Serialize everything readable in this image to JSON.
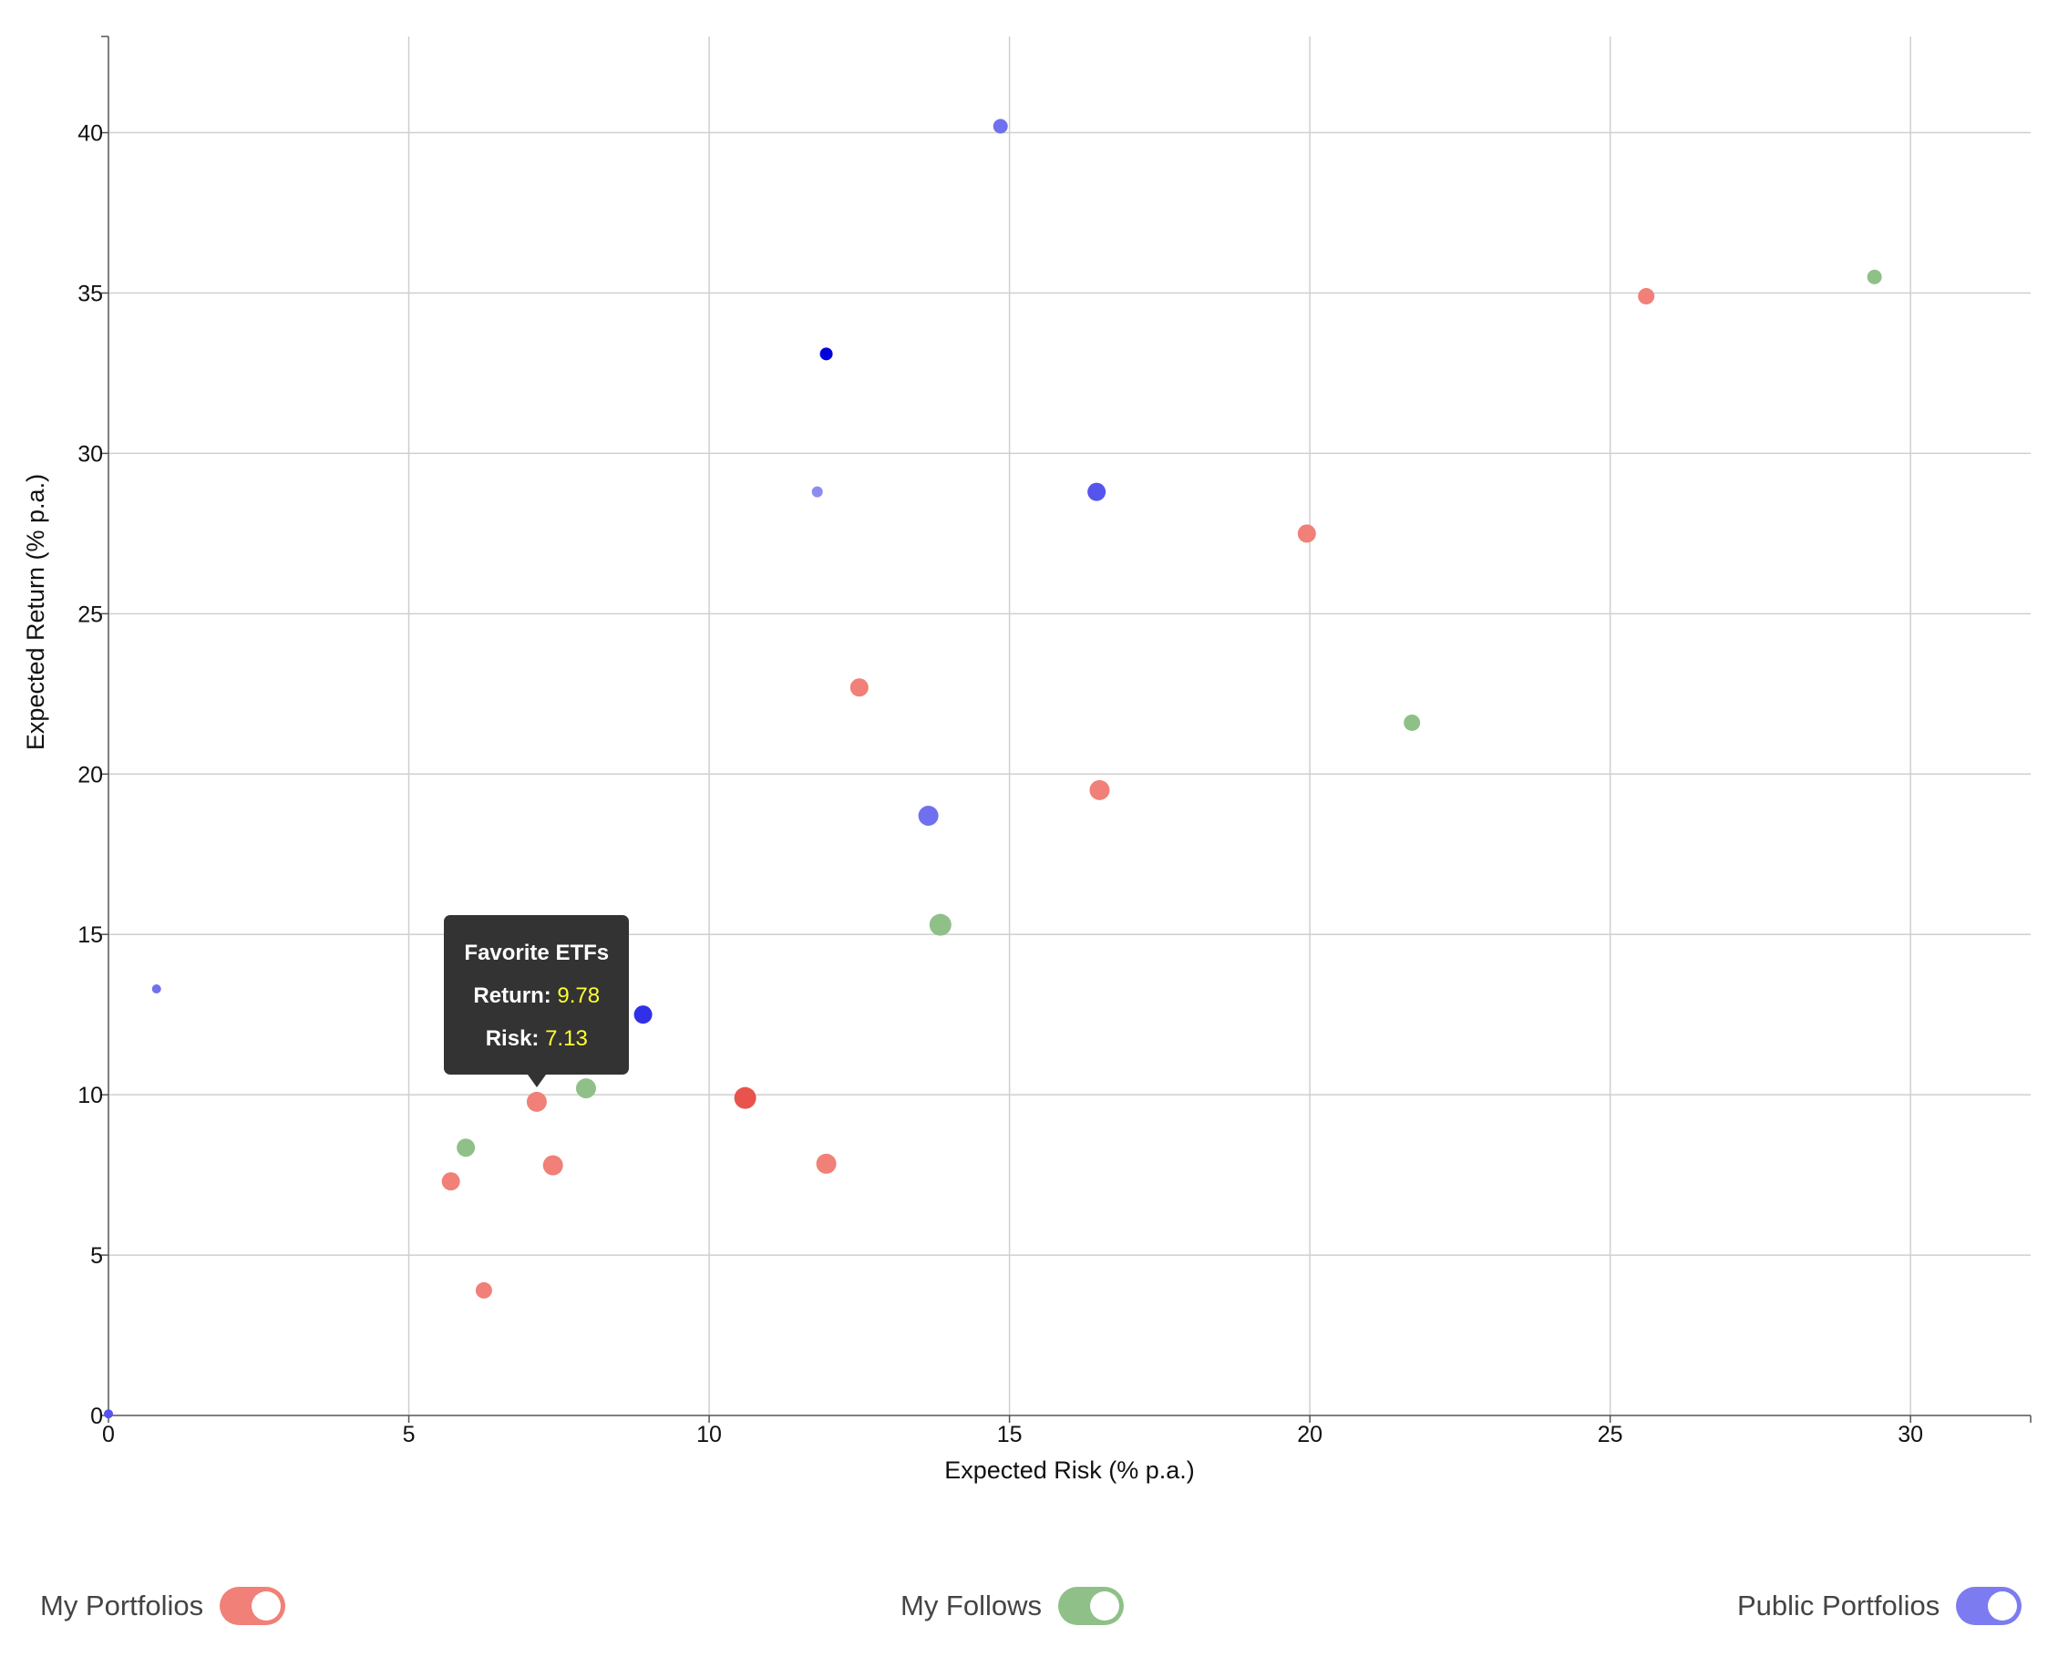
{
  "chart_data": {
    "type": "scatter",
    "xlabel": "Expected Risk (% p.a.)",
    "ylabel": "Expected Return (% p.a.)",
    "xlim": [
      0,
      32
    ],
    "ylim": [
      0,
      43
    ],
    "xticks": [
      0,
      5,
      10,
      15,
      20,
      25,
      30
    ],
    "yticks": [
      0,
      5,
      10,
      15,
      20,
      25,
      30,
      35,
      40
    ],
    "grid": true,
    "legend_position": "bottom",
    "series": [
      {
        "key": "my-portfolios",
        "color": "#f08078",
        "points": [
          {
            "x": 25.6,
            "y": 34.9,
            "r": 9
          },
          {
            "x": 19.95,
            "y": 27.5,
            "r": 10
          },
          {
            "x": 12.5,
            "y": 22.7,
            "r": 10
          },
          {
            "x": 16.5,
            "y": 19.5,
            "r": 11
          },
          {
            "x": 10.6,
            "y": 9.9,
            "r": 12,
            "color": "#e8544c"
          },
          {
            "x": 7.13,
            "y": 9.78,
            "r": 11
          },
          {
            "x": 7.4,
            "y": 7.8,
            "r": 11
          },
          {
            "x": 11.95,
            "y": 7.85,
            "r": 11
          },
          {
            "x": 5.7,
            "y": 7.3,
            "r": 10
          },
          {
            "x": 6.25,
            "y": 3.9,
            "r": 9
          }
        ]
      },
      {
        "key": "my-follows",
        "color": "#8fc088",
        "points": [
          {
            "x": 29.4,
            "y": 35.5,
            "r": 8
          },
          {
            "x": 21.7,
            "y": 21.6,
            "r": 9
          },
          {
            "x": 13.85,
            "y": 15.3,
            "r": 12
          },
          {
            "x": 7.95,
            "y": 10.2,
            "r": 11
          },
          {
            "x": 5.95,
            "y": 8.35,
            "r": 10
          }
        ]
      },
      {
        "key": "public-portfolios",
        "color": "#7070ee",
        "points": [
          {
            "x": 14.85,
            "y": 40.2,
            "r": 8
          },
          {
            "x": 11.95,
            "y": 33.1,
            "r": 7,
            "color": "#0000dd"
          },
          {
            "x": 11.8,
            "y": 28.8,
            "r": 6,
            "color": "#8c8cf0"
          },
          {
            "x": 16.45,
            "y": 28.8,
            "r": 10,
            "color": "#5555ee"
          },
          {
            "x": 13.65,
            "y": 18.7,
            "r": 11
          },
          {
            "x": 8.9,
            "y": 12.5,
            "r": 10,
            "color": "#3030e8"
          },
          {
            "x": 0.8,
            "y": 13.3,
            "r": 5
          },
          {
            "x": 0.0,
            "y": 0.05,
            "r": 5,
            "color": "#5555ee"
          }
        ]
      }
    ],
    "tooltip": {
      "name": "Favorite ETFs",
      "return_label": "Return:",
      "return_value": "9.78",
      "risk_label": "Risk:",
      "risk_value": "7.13",
      "x": 7.13,
      "y": 9.78
    }
  },
  "legend": [
    {
      "label": "My Portfolios",
      "color": "#f08078"
    },
    {
      "label": "My Follows",
      "color": "#8fc088"
    },
    {
      "label": "Public Portfolios",
      "color": "#7c7cf0"
    }
  ]
}
